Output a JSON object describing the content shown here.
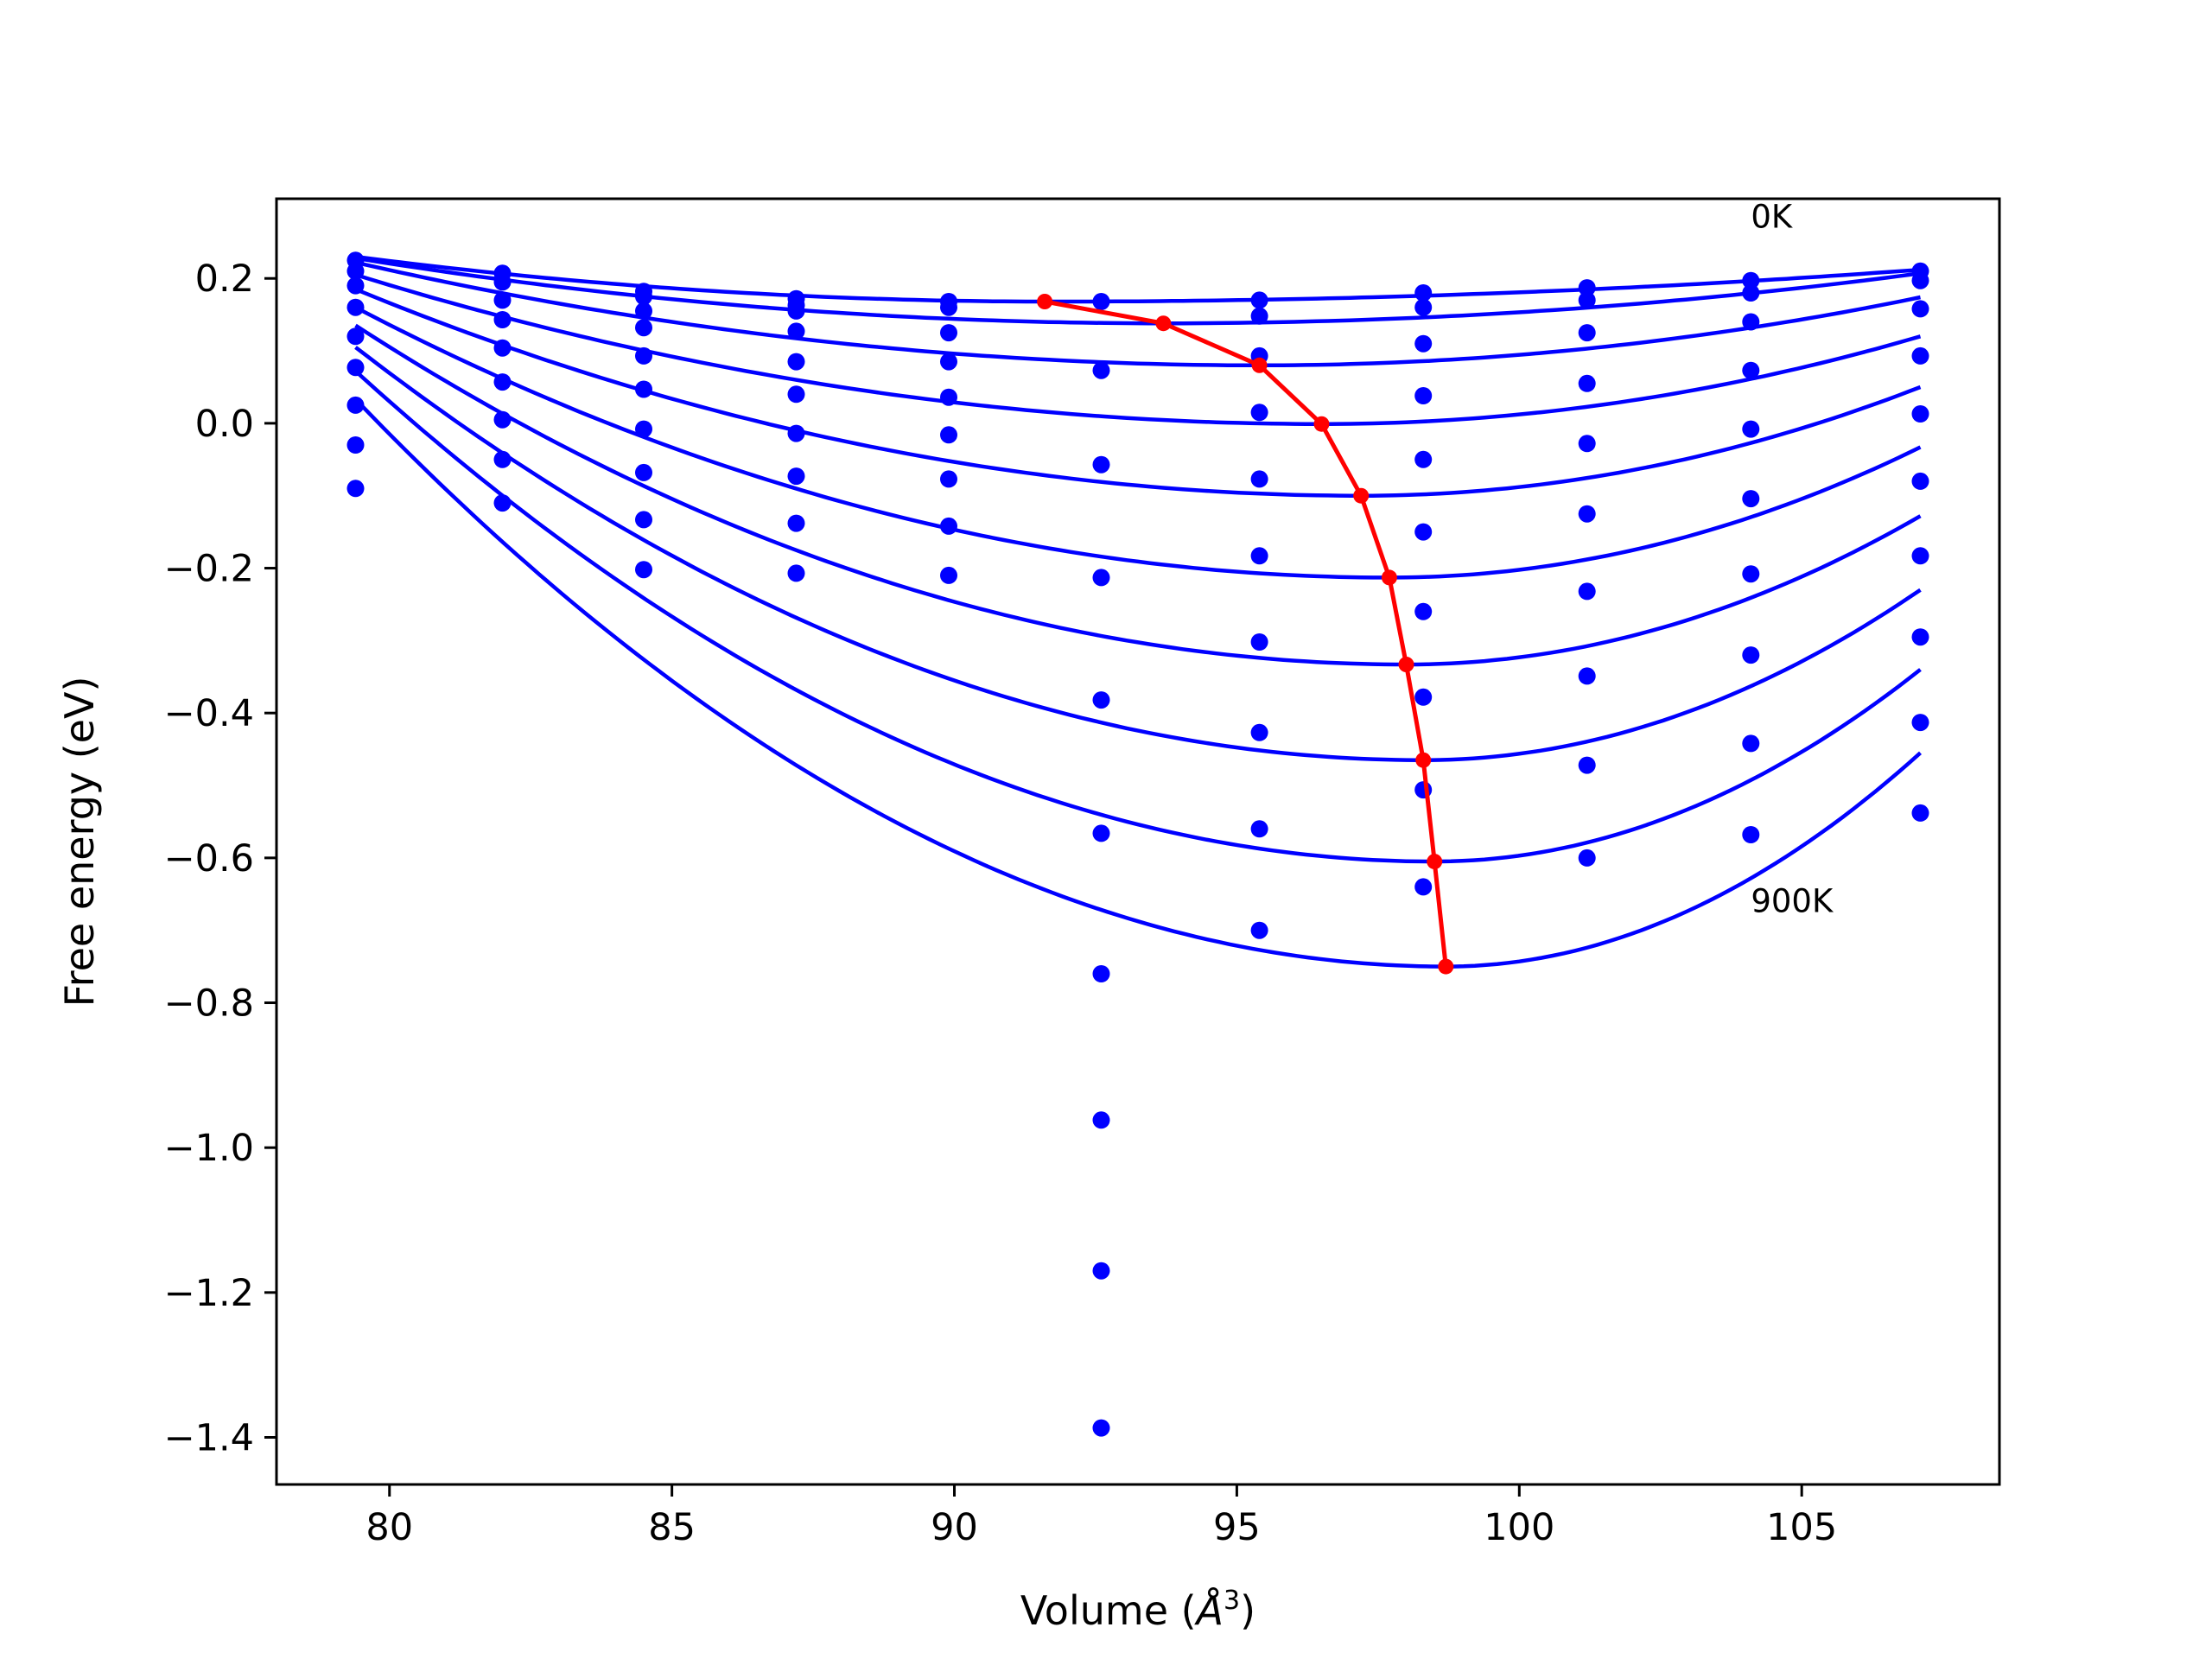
{
  "chart_data": {
    "type": "line",
    "title": "",
    "xlabel": "Volume (",
    "xlabel_symbol": "Å",
    "xlabel_exp": "3",
    "xlabel_close": ")",
    "ylabel": "Free energy (eV)",
    "xlim": [
      78.0,
      108.5
    ],
    "ylim": [
      -1.465,
      0.31
    ],
    "x_ticks": [
      80,
      85,
      90,
      95,
      100,
      105
    ],
    "x_tick_labels": [
      "80",
      "85",
      "90",
      "95",
      "100",
      "105"
    ],
    "y_ticks": [
      0.2,
      0.0,
      -0.2,
      -0.4,
      -0.6,
      -0.8,
      -1.0,
      -1.2,
      -1.4
    ],
    "y_tick_labels": [
      "0.2",
      "0.0",
      "−0.2",
      "−0.4",
      "−0.6",
      "−0.8",
      "−1.0",
      "−1.2",
      "−1.4"
    ],
    "grid": false,
    "colors": {
      "fit": "#0000ff",
      "points": "#0000ff",
      "min_path": "#ff0000"
    },
    "annotations": [
      {
        "text": "0K",
        "x": 104.1,
        "y": 0.27
      },
      {
        "text": "900K",
        "x": 104.1,
        "y": -0.675
      }
    ],
    "volumes": [
      79.4,
      82.0,
      84.5,
      87.2,
      89.9,
      92.6,
      95.4,
      98.3,
      101.2,
      104.1,
      107.1
    ],
    "scatter_series": [
      {
        "volume": 79.4,
        "values": [
          0.225,
          0.21,
          0.19,
          0.16,
          0.12,
          0.077,
          0.025,
          -0.03,
          -0.09
        ]
      },
      {
        "volume": 82.0,
        "values": [
          0.207,
          0.195,
          0.17,
          0.143,
          0.104,
          0.057,
          0.005,
          -0.05,
          -0.11
        ]
      },
      {
        "volume": 84.5,
        "values": [
          0.182,
          0.175,
          0.155,
          0.132,
          0.093,
          0.047,
          -0.008,
          -0.068,
          -0.133,
          -0.202
        ]
      },
      {
        "volume": 87.2,
        "values": [
          0.172,
          0.163,
          0.155,
          0.127,
          0.085,
          0.04,
          -0.014,
          -0.073,
          -0.138,
          -0.207
        ]
      },
      {
        "volume": 89.9,
        "values": [
          0.168,
          0.16,
          0.125,
          0.085,
          0.036,
          -0.016,
          -0.077,
          -0.142,
          -0.21
        ]
      },
      {
        "volume": 92.6,
        "values": [
          0.168,
          0.073,
          -0.057,
          -0.213,
          -0.382,
          -0.566,
          -0.76,
          -0.962,
          -1.17,
          -1.387
        ]
      },
      {
        "volume": 95.4,
        "values": [
          0.17,
          0.148,
          0.093,
          0.015,
          -0.077,
          -0.183,
          -0.302,
          -0.427,
          -0.56,
          -0.7
        ]
      },
      {
        "volume": 98.3,
        "values": [
          0.18,
          0.16,
          0.11,
          0.038,
          -0.05,
          -0.15,
          -0.26,
          -0.378,
          -0.506,
          -0.64
        ]
      },
      {
        "volume": 101.2,
        "values": [
          0.187,
          0.17,
          0.125,
          0.055,
          -0.028,
          -0.125,
          -0.232,
          -0.349,
          -0.472,
          -0.6
        ]
      },
      {
        "volume": 104.1,
        "values": [
          0.197,
          0.18,
          0.14,
          0.073,
          -0.008,
          -0.104,
          -0.208,
          -0.32,
          -0.442,
          -0.568
        ]
      },
      {
        "volume": 107.1,
        "values": [
          0.21,
          0.197,
          0.158,
          0.093,
          0.013,
          -0.08,
          -0.183,
          -0.295,
          -0.413,
          -0.538
        ]
      }
    ],
    "fit_curves": [
      {
        "label": "0K",
        "v0": 91.7,
        "e0": 0.168,
        "v_start": 79.4,
        "e_start": 0.23,
        "v_end": 107.1,
        "e_end": 0.212
      },
      {
        "v0": 93.7,
        "e0": 0.138,
        "v_start": 79.4,
        "e_start": 0.228,
        "v_end": 107.1,
        "e_end": 0.207
      },
      {
        "v0": 95.4,
        "e0": 0.08,
        "v_start": 79.4,
        "e_start": 0.222,
        "v_end": 107.1,
        "e_end": 0.174
      },
      {
        "v0": 96.5,
        "e0": -0.001,
        "v_start": 79.4,
        "e_start": 0.205,
        "v_end": 107.1,
        "e_end": 0.12
      },
      {
        "v0": 97.2,
        "e0": -0.1,
        "v_start": 79.4,
        "e_start": 0.185,
        "v_end": 107.1,
        "e_end": 0.05
      },
      {
        "v0": 97.7,
        "e0": -0.213,
        "v_start": 79.4,
        "e_start": 0.16,
        "v_end": 107.1,
        "e_end": -0.033
      },
      {
        "v0": 98.0,
        "e0": -0.333,
        "v_start": 79.4,
        "e_start": 0.135,
        "v_end": 107.1,
        "e_end": -0.128
      },
      {
        "v0": 98.3,
        "e0": -0.465,
        "v_start": 79.4,
        "e_start": 0.105,
        "v_end": 107.1,
        "e_end": -0.23
      },
      {
        "v0": 98.5,
        "e0": -0.605,
        "v_start": 79.4,
        "e_start": 0.072,
        "v_end": 107.1,
        "e_end": -0.34
      },
      {
        "label": "900K",
        "v0": 98.7,
        "e0": -0.75,
        "v_start": 79.5,
        "e_start": 0.025,
        "v_end": 107.1,
        "e_end": -0.455
      }
    ],
    "min_path": {
      "x": [
        91.6,
        93.7,
        95.4,
        96.5,
        97.2,
        97.7,
        98.0,
        98.3,
        98.5,
        98.7
      ],
      "y": [
        0.168,
        0.138,
        0.08,
        -0.001,
        -0.1,
        -0.213,
        -0.333,
        -0.465,
        -0.605,
        -0.75
      ]
    }
  }
}
